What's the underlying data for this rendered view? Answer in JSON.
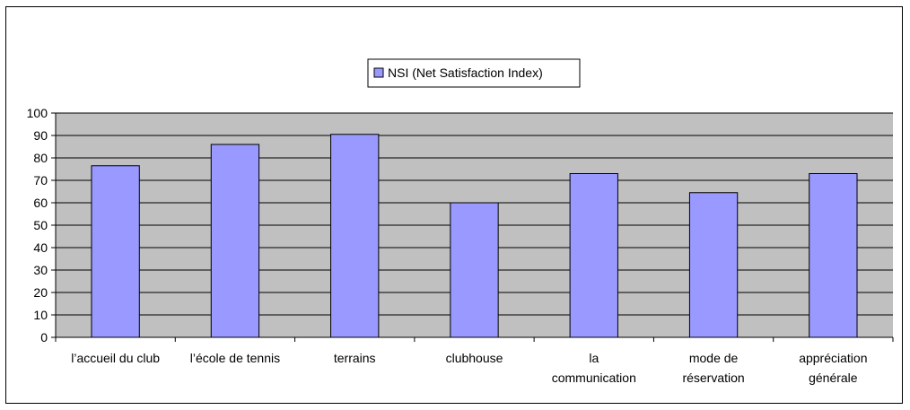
{
  "chart_data": {
    "type": "bar",
    "categories": [
      [
        "l’accueil du club"
      ],
      [
        "l’école de tennis"
      ],
      [
        "terrains"
      ],
      [
        "clubhouse"
      ],
      [
        "la",
        "communication"
      ],
      [
        "mode de",
        "réservation"
      ],
      [
        "appréciation",
        "générale"
      ]
    ],
    "series": [
      {
        "name": "NSI (Net Satisfaction Index)",
        "values": [
          76.5,
          86,
          90.5,
          60,
          73,
          64.5,
          73
        ]
      }
    ],
    "ylim": [
      0,
      100
    ],
    "yticks": [
      0,
      10,
      20,
      30,
      40,
      50,
      60,
      70,
      80,
      90,
      100
    ],
    "grid": true,
    "legend_position": "top-center",
    "colors": {
      "bar": "#9999ff",
      "plot_bg": "#c0c0c0",
      "bar_stroke": "#000000",
      "grid": "#000000"
    }
  }
}
